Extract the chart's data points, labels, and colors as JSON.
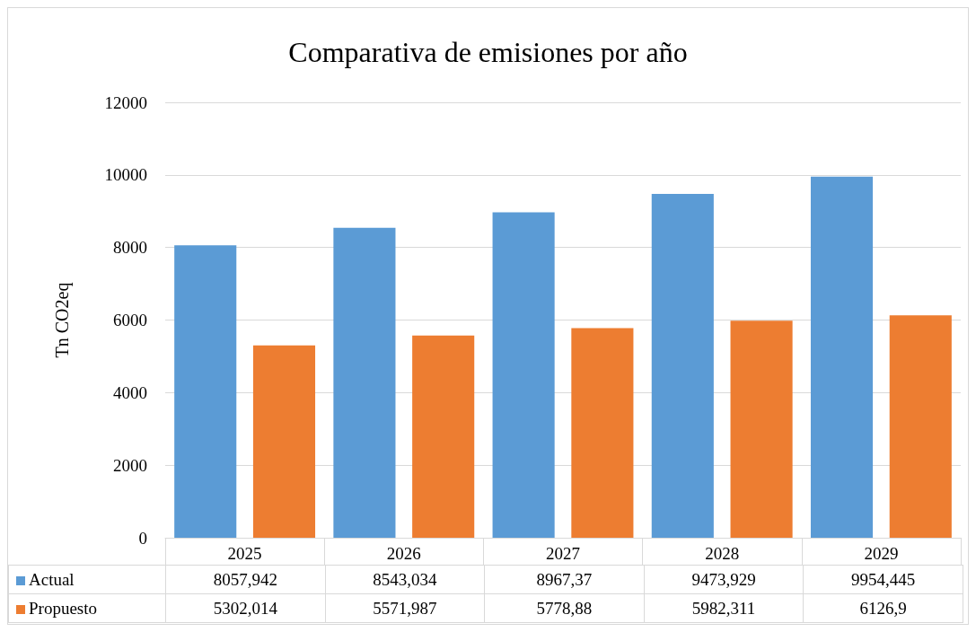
{
  "chart_data": {
    "type": "bar",
    "title": "Comparativa de emisiones por año",
    "ylabel": "Tn CO2eq",
    "categories": [
      "2025",
      "2026",
      "2027",
      "2028",
      "2029"
    ],
    "series": [
      {
        "name": "Actual",
        "color": "#5b9bd5",
        "values": [
          8057.942,
          8543.034,
          8967.37,
          9473.929,
          9954.445
        ],
        "value_labels": [
          "8057,942",
          "8543,034",
          "8967,37",
          "9473,929",
          "9954,445"
        ]
      },
      {
        "name": "Propuesto",
        "color": "#ed7d31",
        "values": [
          5302.014,
          5571.987,
          5778.88,
          5982.311,
          6126.9
        ],
        "value_labels": [
          "5302,014",
          "5571,987",
          "5778,88",
          "5982,311",
          "6126,9"
        ]
      }
    ],
    "ylim": [
      0,
      12000
    ],
    "yticks": [
      0,
      2000,
      4000,
      6000,
      8000,
      10000,
      12000
    ],
    "grid": "y",
    "legend": "bottom"
  }
}
